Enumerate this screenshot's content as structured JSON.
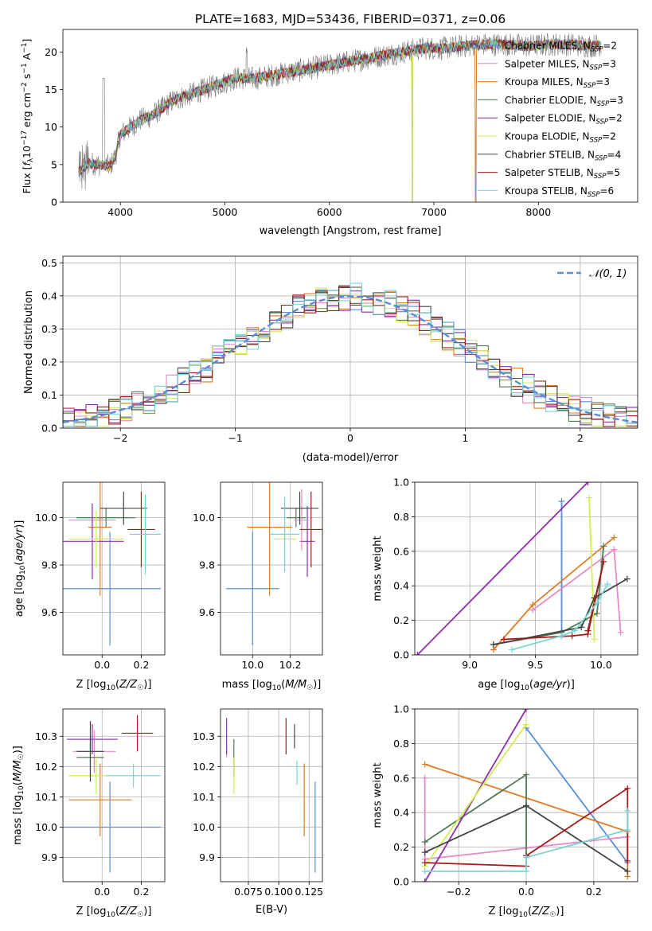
{
  "title": "PLATE=1683, MJD=53436, FIBERID=0371, z=0.06",
  "colors": {
    "chabrier_miles": "#5b8cdc",
    "salpeter_miles": "#e58ac6",
    "kroupa_miles": "#e07b20",
    "chabrier_elodie": "#4f7a56",
    "salpeter_elodie": "#8e2fb0",
    "kroupa_elodie": "#d2ee52",
    "chabrier_stelib": "#444444",
    "salpeter_stelib": "#a51a1a",
    "kroupa_stelib": "#7ad6d6",
    "gaussian": "#5b8cdc"
  },
  "chart_data": [
    {
      "id": "spectrum",
      "type": "line",
      "title": "PLATE=1683, MJD=53436, FIBERID=0371, z=0.06",
      "xlabel": "wavelength [Angstrom, rest frame]",
      "ylabel_parts": [
        "Flux [",
        "f",
        "λ",
        "10",
        "−17",
        " erg cm",
        "−2",
        " s",
        "−1",
        " A",
        "−1",
        "]"
      ],
      "xlim": [
        3450,
        8950
      ],
      "ylim": [
        0,
        23
      ],
      "xticks": [
        "4000",
        "5000",
        "6000",
        "7000",
        "8000"
      ],
      "yticks": [
        "0",
        "5",
        "10",
        "15",
        "20"
      ],
      "flux_continuum": [
        [
          3600,
          4.0
        ],
        [
          3700,
          5.2
        ],
        [
          3800,
          5.0
        ],
        [
          3900,
          4.8
        ],
        [
          3950,
          6.0
        ],
        [
          4000,
          9.0
        ],
        [
          4100,
          10.0
        ],
        [
          4200,
          11.0
        ],
        [
          4300,
          11.5
        ],
        [
          4400,
          12.5
        ],
        [
          4500,
          13.5
        ],
        [
          4700,
          14.5
        ],
        [
          4900,
          15.5
        ],
        [
          5100,
          16.5
        ],
        [
          5300,
          16.5
        ],
        [
          5500,
          17.0
        ],
        [
          5700,
          17.5
        ],
        [
          5900,
          18.0
        ],
        [
          6100,
          18.5
        ],
        [
          6300,
          19.0
        ],
        [
          6500,
          19.5
        ],
        [
          6700,
          20.0
        ],
        [
          6900,
          20.5
        ],
        [
          7100,
          20.5
        ],
        [
          7300,
          20.8
        ],
        [
          7500,
          21.0
        ],
        [
          7700,
          21.0
        ],
        [
          7900,
          20.8
        ],
        [
          8100,
          21.0
        ],
        [
          8300,
          21.0
        ],
        [
          8500,
          20.8
        ],
        [
          8700,
          21.2
        ]
      ],
      "legend": [
        {
          "name": "Chabrier MILES",
          "n": "2",
          "color": "#5b8cdc"
        },
        {
          "name": "Salpeter MILES",
          "n": "3",
          "color": "#e58ac6"
        },
        {
          "name": "Kroupa MILES",
          "n": "3",
          "color": "#e07b20"
        },
        {
          "name": "Chabrier ELODIE",
          "n": "3",
          "color": "#4f7a56"
        },
        {
          "name": "Salpeter ELODIE",
          "n": "2",
          "color": "#8e2fb0"
        },
        {
          "name": "Kroupa ELODIE",
          "n": "2",
          "color": "#d2ee52"
        },
        {
          "name": "Chabrier STELIB",
          "n": "4",
          "color": "#444444"
        },
        {
          "name": "Salpeter STELIB",
          "n": "5",
          "color": "#a51a1a"
        },
        {
          "name": "Kroupa STELIB",
          "n": "6",
          "color": "#7ad6d6"
        }
      ],
      "legend_position": "right"
    },
    {
      "id": "residuals",
      "type": "histogram",
      "xlabel": "(data-model)/error",
      "ylabel": "Normed distribution",
      "xlim": [
        -2.5,
        2.5
      ],
      "ylim": [
        0,
        0.52
      ],
      "xticks": [
        "−2",
        "−1",
        "0",
        "1",
        "2"
      ],
      "yticks": [
        "0.0",
        "0.1",
        "0.2",
        "0.3",
        "0.4",
        "0.5"
      ],
      "legend": [
        {
          "name": "𝒩(0, 1)",
          "color": "#5b8cdc"
        }
      ],
      "legend_position": "top-right",
      "bin_width": 0.1,
      "series_shape": "normal(0,1), 9 series with jitter"
    },
    {
      "id": "z-age",
      "type": "errorbar",
      "xlabel": "Z [log10(Z/Z☉)]",
      "ylabel": "age [log10(age/yr)]",
      "xlim": [
        -0.2,
        0.32
      ],
      "ylim": [
        9.42,
        10.15
      ],
      "xticks": [
        "0.0",
        "0.2"
      ],
      "yticks": [
        "9.6",
        "9.8",
        "10.0"
      ],
      "points": [
        {
          "c": "#5b8cdc",
          "x": 0.04,
          "xe": 0.26,
          "y": 9.7,
          "ye": 0.24
        },
        {
          "c": "#e58ac6",
          "x": -0.05,
          "xe": 0.12,
          "y": 9.99,
          "ye": 0.07
        },
        {
          "c": "#e07b20",
          "x": -0.01,
          "xe": 0.06,
          "y": 9.96,
          "ye": 0.29
        },
        {
          "c": "#4f7a56",
          "x": 0.02,
          "xe": 0.15,
          "y": 10.0,
          "ye": 0.04
        },
        {
          "c": "#8e2fb0",
          "x": -0.05,
          "xe": 0.16,
          "y": 9.9,
          "ye": 0.16
        },
        {
          "c": "#d2ee52",
          "x": -0.03,
          "xe": 0.14,
          "y": 9.91,
          "ye": 0.12
        },
        {
          "c": "#444444",
          "x": 0.11,
          "xe": 0.12,
          "y": 10.04,
          "ye": 0.07
        },
        {
          "c": "#a51a1a",
          "x": 0.2,
          "xe": 0.07,
          "y": 9.95,
          "ye": 0.16
        },
        {
          "c": "#7ad6d6",
          "x": 0.22,
          "xe": 0.08,
          "y": 9.93,
          "ye": 0.17
        }
      ]
    },
    {
      "id": "mass-age",
      "type": "errorbar",
      "xlabel": "mass [log10(M/M☉)]",
      "ylabel": "",
      "xlim": [
        9.83,
        10.37
      ],
      "ylim": [
        9.42,
        10.15
      ],
      "xticks": [
        "10.0",
        "10.2"
      ],
      "yticks": [
        "9.6",
        "9.8",
        "10.0"
      ],
      "points": [
        {
          "c": "#5b8cdc",
          "x": 10.0,
          "xe": 0.14,
          "y": 9.7,
          "ye": 0.24
        },
        {
          "c": "#e07b20",
          "x": 10.09,
          "xe": 0.12,
          "y": 9.96,
          "ye": 0.29
        },
        {
          "c": "#4f7a56",
          "x": 10.23,
          "xe": 0.05,
          "y": 10.0,
          "ye": 0.04
        },
        {
          "c": "#8e2fb0",
          "x": 10.29,
          "xe": 0.04,
          "y": 9.9,
          "ye": 0.15
        },
        {
          "c": "#e58ac6",
          "x": 10.26,
          "xe": 0.04,
          "y": 9.99,
          "ye": 0.13
        },
        {
          "c": "#d2ee52",
          "x": 10.17,
          "xe": 0.06,
          "y": 9.91,
          "ye": 0.11
        },
        {
          "c": "#444444",
          "x": 10.25,
          "xe": 0.1,
          "y": 10.04,
          "ye": 0.07
        },
        {
          "c": "#a51a1a",
          "x": 10.31,
          "xe": 0.06,
          "y": 9.95,
          "ye": 0.16
        },
        {
          "c": "#7ad6d6",
          "x": 10.17,
          "xe": 0.08,
          "y": 9.93,
          "ye": 0.16
        }
      ]
    },
    {
      "id": "age-weight",
      "type": "line",
      "xlabel": "age [log10(age/yr)]",
      "ylabel": "mass weight",
      "xlim": [
        8.58,
        10.28
      ],
      "ylim": [
        0,
        1
      ],
      "xticks": [
        "9.0",
        "9.5",
        "10.0"
      ],
      "yticks": [
        "0.0",
        "0.2",
        "0.4",
        "0.6",
        "0.8",
        "1.0"
      ],
      "series": [
        {
          "c": "#5b8cdc",
          "pts": [
            [
              9.7,
              0.89
            ],
            [
              9.7,
              0.11
            ]
          ]
        },
        {
          "c": "#e58ac6",
          "pts": [
            [
              9.48,
              0.26
            ],
            [
              10.1,
              0.61
            ],
            [
              10.15,
              0.13
            ]
          ]
        },
        {
          "c": "#e07b20",
          "pts": [
            [
              9.18,
              0.03
            ],
            [
              9.48,
              0.29
            ],
            [
              10.1,
              0.68
            ]
          ]
        },
        {
          "c": "#4f7a56",
          "pts": [
            [
              9.18,
              0.06
            ],
            [
              9.7,
              0.13
            ],
            [
              9.97,
              0.24
            ],
            [
              10.02,
              0.63
            ]
          ]
        },
        {
          "c": "#8e2fb0",
          "pts": [
            [
              8.6,
              0.0
            ],
            [
              9.9,
              1.0
            ]
          ]
        },
        {
          "c": "#d2ee52",
          "pts": [
            [
              9.91,
              0.91
            ],
            [
              9.95,
              0.09
            ]
          ]
        },
        {
          "c": "#444444",
          "pts": [
            [
              9.18,
              0.06
            ],
            [
              9.85,
              0.16
            ],
            [
              9.95,
              0.33
            ],
            [
              10.2,
              0.44
            ]
          ]
        },
        {
          "c": "#a51a1a",
          "pts": [
            [
              9.26,
              0.09
            ],
            [
              9.78,
              0.11
            ],
            [
              9.9,
              0.12
            ],
            [
              10.02,
              0.54
            ],
            [
              9.9,
              0.14
            ]
          ]
        },
        {
          "c": "#7ad6d6",
          "pts": [
            [
              9.32,
              0.03
            ],
            [
              9.7,
              0.11
            ],
            [
              9.8,
              0.14
            ],
            [
              9.97,
              0.3
            ],
            [
              10.05,
              0.41
            ]
          ]
        }
      ]
    },
    {
      "id": "z-mass",
      "type": "errorbar",
      "xlabel": "Z [log10(Z/Z☉)]",
      "ylabel": "mass [log10(M/M☉)]",
      "xlim": [
        -0.2,
        0.32
      ],
      "ylim": [
        9.82,
        10.39
      ],
      "xticks": [
        "0.0",
        "0.2"
      ],
      "yticks": [
        "9.9",
        "10.0",
        "10.1",
        "10.2",
        "10.3"
      ],
      "points": [
        {
          "c": "#5b8cdc",
          "x": 0.04,
          "xe": 0.26,
          "y": 10.0,
          "ye": 0.15
        },
        {
          "c": "#e58ac6",
          "x": -0.04,
          "xe": 0.11,
          "y": 10.25,
          "ye": 0.07
        },
        {
          "c": "#e07b20",
          "x": -0.01,
          "xe": 0.16,
          "y": 10.09,
          "ye": 0.12
        },
        {
          "c": "#4f7a56",
          "x": -0.06,
          "xe": 0.07,
          "y": 10.23,
          "ye": 0.06
        },
        {
          "c": "#8e2fb0",
          "x": -0.05,
          "xe": 0.13,
          "y": 10.29,
          "ye": 0.05
        },
        {
          "c": "#d2ee52",
          "x": -0.03,
          "xe": 0.14,
          "y": 10.17,
          "ye": 0.06
        },
        {
          "c": "#444444",
          "x": -0.06,
          "xe": 0.07,
          "y": 10.25,
          "ye": 0.1
        },
        {
          "c": "#a51a1a",
          "x": 0.18,
          "xe": 0.08,
          "y": 10.31,
          "ye": 0.06
        },
        {
          "c": "#7ad6d6",
          "x": 0.16,
          "xe": 0.14,
          "y": 10.17,
          "ye": 0.04
        }
      ]
    },
    {
      "id": "ebv-mass",
      "type": "errorbar",
      "xlabel": "E(B-V)",
      "ylabel": "",
      "xlim": [
        0.052,
        0.136
      ],
      "ylim": [
        9.82,
        10.39
      ],
      "xticks": [
        "0.075",
        "0.100",
        "0.125"
      ],
      "yticks": [
        "9.9",
        "10.0",
        "10.1",
        "10.2",
        "10.3"
      ],
      "points": [
        {
          "c": "#5b8cdc",
          "x": 0.13,
          "xe": 0,
          "y": 10.0,
          "ye": 0.15
        },
        {
          "c": "#e58ac6",
          "x": 0.057,
          "xe": 0,
          "y": 10.25,
          "ye": 0.02
        },
        {
          "c": "#e07b20",
          "x": 0.121,
          "xe": 0,
          "y": 10.09,
          "ye": 0.12
        },
        {
          "c": "#4f7a56",
          "x": 0.063,
          "xe": 0,
          "y": 10.23,
          "ye": 0.06
        },
        {
          "c": "#8e2fb0",
          "x": 0.057,
          "xe": 0,
          "y": 10.3,
          "ye": 0.06
        },
        {
          "c": "#d2ee52",
          "x": 0.063,
          "xe": 0,
          "y": 10.17,
          "ye": 0.06
        },
        {
          "c": "#444444",
          "x": 0.113,
          "xe": 0,
          "y": 10.3,
          "ye": 0.04
        },
        {
          "c": "#a51a1a",
          "x": 0.106,
          "xe": 0,
          "y": 10.3,
          "ye": 0.06
        },
        {
          "c": "#7ad6d6",
          "x": 0.115,
          "xe": 0,
          "y": 10.18,
          "ye": 0.04
        }
      ]
    },
    {
      "id": "z-weight",
      "type": "line",
      "xlabel": "Z [log10(Z/Z☉)]",
      "ylabel": "mass weight",
      "xlim": [
        -0.33,
        0.33
      ],
      "ylim": [
        0,
        1
      ],
      "xticks": [
        "−0.2",
        "0.0",
        "0.2"
      ],
      "yticks": [
        "0.0",
        "0.2",
        "0.4",
        "0.6",
        "0.8",
        "1.0"
      ],
      "series": [
        {
          "c": "#5b8cdc",
          "pts": [
            [
              0.0,
              0.89
            ],
            [
              0.3,
              0.11
            ]
          ]
        },
        {
          "c": "#e58ac6",
          "pts": [
            [
              -0.3,
              0.6
            ],
            [
              -0.3,
              0.13
            ],
            [
              0.3,
              0.26
            ]
          ]
        },
        {
          "c": "#e07b20",
          "pts": [
            [
              -0.3,
              0.68
            ],
            [
              0.3,
              0.29
            ],
            [
              0.3,
              0.03
            ]
          ]
        },
        {
          "c": "#4f7a56",
          "pts": [
            [
              -0.3,
              0.23
            ],
            [
              0.0,
              0.62
            ],
            [
              0.0,
              0.15
            ]
          ]
        },
        {
          "c": "#8e2fb0",
          "pts": [
            [
              -0.3,
              0.0
            ],
            [
              0.0,
              1.0
            ]
          ]
        },
        {
          "c": "#d2ee52",
          "pts": [
            [
              -0.3,
              0.09
            ],
            [
              0.0,
              0.91
            ]
          ]
        },
        {
          "c": "#444444",
          "pts": [
            [
              -0.3,
              0.17
            ],
            [
              0.0,
              0.44
            ],
            [
              0.3,
              0.06
            ]
          ]
        },
        {
          "c": "#a51a1a",
          "pts": [
            [
              -0.3,
              0.11
            ],
            [
              0.0,
              0.09
            ],
            [
              0.0,
              0.15
            ],
            [
              0.3,
              0.54
            ],
            [
              0.3,
              0.12
            ]
          ]
        },
        {
          "c": "#7ad6d6",
          "pts": [
            [
              -0.3,
              0.06
            ],
            [
              0.0,
              0.06
            ],
            [
              0.0,
              0.14
            ],
            [
              0.3,
              0.3
            ],
            [
              0.3,
              0.41
            ]
          ]
        }
      ]
    }
  ]
}
